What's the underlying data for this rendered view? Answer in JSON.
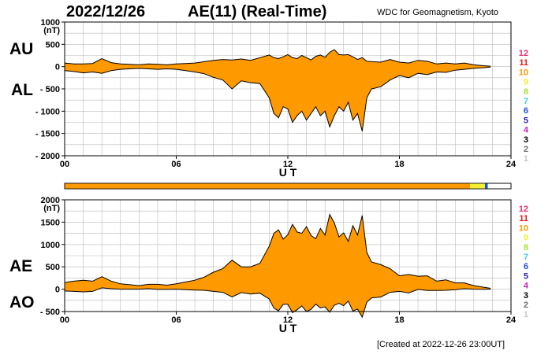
{
  "header": {
    "date": "2022/12/26",
    "title": "AE(11) (Real-Time)",
    "source": "WDC for Geomagnetism, Kyoto"
  },
  "footer": {
    "created": "[Created at 2022-12-26 23:00UT]"
  },
  "side_labels": {
    "au": "AU",
    "al": "AL",
    "ae": "AE",
    "ao": "AO"
  },
  "legend": {
    "items": [
      {
        "label": "12",
        "color": "#e8306e"
      },
      {
        "label": "11",
        "color": "#e61e1e"
      },
      {
        "label": "10",
        "color": "#ff9900"
      },
      {
        "label": "9",
        "color": "#f2ee32"
      },
      {
        "label": "8",
        "color": "#a6e22e"
      },
      {
        "label": "7",
        "color": "#3ad0e8"
      },
      {
        "label": "6",
        "color": "#2050e0"
      },
      {
        "label": "5",
        "color": "#3020b0"
      },
      {
        "label": "4",
        "color": "#c020c0"
      },
      {
        "label": "3",
        "color": "#000000"
      },
      {
        "label": "2",
        "color": "#707070"
      },
      {
        "label": "1",
        "color": "#c8c8c8"
      }
    ]
  },
  "colors": {
    "fill": "#ff9900",
    "line": "#000000",
    "grid": "#b8b8b8"
  },
  "chart_data": [
    {
      "type": "area",
      "name_labels": [
        "AU",
        "AL"
      ],
      "unit": "(nT)",
      "xlabel": "U T",
      "xlim": [
        0,
        24
      ],
      "xticks": [
        0,
        6,
        12,
        18,
        24
      ],
      "xtick_labels": [
        "00",
        "06",
        "12",
        "18",
        "24"
      ],
      "ylim": [
        -2000,
        1000
      ],
      "yticks": [
        1000,
        500,
        0,
        -500,
        -1000,
        -1500,
        -2000
      ],
      "ytick_labels": [
        "1000",
        "500",
        "0",
        "- 500",
        "- 1000",
        "- 1500",
        "- 2000"
      ],
      "grid": true,
      "x": [
        0,
        0.5,
        1,
        1.5,
        2,
        2.5,
        3,
        3.5,
        4,
        4.5,
        5,
        5.5,
        6,
        6.5,
        7,
        7.5,
        8,
        8.5,
        9,
        9.5,
        10,
        10.5,
        11,
        11.25,
        11.5,
        11.75,
        12,
        12.25,
        12.5,
        12.75,
        13,
        13.25,
        13.5,
        13.75,
        14,
        14.25,
        14.5,
        14.75,
        15,
        15.25,
        15.5,
        15.75,
        16,
        16.25,
        16.5,
        17,
        17.5,
        18,
        18.5,
        19,
        19.5,
        20,
        20.5,
        21,
        21.5,
        22,
        22.5,
        22.9
      ],
      "upper": [
        80,
        60,
        60,
        70,
        180,
        90,
        60,
        50,
        40,
        60,
        50,
        40,
        60,
        70,
        80,
        110,
        140,
        160,
        150,
        170,
        140,
        200,
        260,
        200,
        180,
        220,
        270,
        200,
        180,
        250,
        200,
        150,
        230,
        260,
        210,
        320,
        380,
        270,
        260,
        270,
        220,
        160,
        200,
        120,
        110,
        100,
        160,
        100,
        80,
        140,
        120,
        60,
        80,
        60,
        80,
        40,
        20,
        10
      ],
      "lower": [
        -90,
        -110,
        -140,
        -120,
        -150,
        -90,
        -60,
        -50,
        -40,
        -50,
        -60,
        -50,
        -60,
        -90,
        -120,
        -160,
        -240,
        -300,
        -500,
        -320,
        -360,
        -380,
        -700,
        -1050,
        -1150,
        -900,
        -950,
        -1250,
        -1100,
        -1000,
        -1200,
        -1050,
        -900,
        -1100,
        -1000,
        -1350,
        -1100,
        -900,
        -1000,
        -800,
        -1200,
        -1050,
        -1450,
        -700,
        -500,
        -450,
        -300,
        -200,
        -250,
        -150,
        -180,
        -120,
        -130,
        -80,
        -60,
        -40,
        -25,
        -10
      ]
    },
    {
      "type": "area",
      "name_labels": [
        "AE",
        "AO"
      ],
      "unit": "(nT)",
      "xlabel": "U T",
      "xlim": [
        0,
        24
      ],
      "xticks": [
        0,
        6,
        12,
        18,
        24
      ],
      "xtick_labels": [
        "00",
        "06",
        "12",
        "18",
        "24"
      ],
      "ylim": [
        -500,
        2000
      ],
      "yticks": [
        2000,
        1500,
        1000,
        500,
        0,
        -500
      ],
      "ytick_labels": [
        "2000",
        "1500",
        "1000",
        "500",
        "0",
        "- 500"
      ],
      "grid": true,
      "x": [
        0,
        0.5,
        1,
        1.5,
        2,
        2.5,
        3,
        3.5,
        4,
        4.5,
        5,
        5.5,
        6,
        6.5,
        7,
        7.5,
        8,
        8.5,
        9,
        9.5,
        10,
        10.5,
        11,
        11.25,
        11.5,
        11.75,
        12,
        12.25,
        12.5,
        12.75,
        13,
        13.25,
        13.5,
        13.75,
        14,
        14.25,
        14.5,
        14.75,
        15,
        15.25,
        15.5,
        15.75,
        16,
        16.25,
        16.5,
        17,
        17.5,
        18,
        18.5,
        19,
        19.5,
        20,
        20.5,
        21,
        21.5,
        22,
        22.5,
        22.9
      ],
      "upper": [
        150,
        180,
        200,
        180,
        280,
        180,
        120,
        100,
        80,
        110,
        110,
        90,
        120,
        160,
        200,
        270,
        380,
        460,
        650,
        500,
        500,
        580,
        960,
        1250,
        1330,
        1120,
        1220,
        1450,
        1280,
        1250,
        1400,
        1200,
        1130,
        1360,
        1210,
        1670,
        1480,
        1170,
        1260,
        1070,
        1420,
        1210,
        1650,
        820,
        610,
        550,
        460,
        300,
        330,
        290,
        300,
        180,
        210,
        140,
        140,
        80,
        45,
        20
      ],
      "lower": [
        -40,
        -50,
        -60,
        -50,
        30,
        10,
        0,
        0,
        0,
        10,
        -5,
        -5,
        0,
        -10,
        -20,
        -25,
        -50,
        -70,
        -175,
        -75,
        -110,
        -90,
        -220,
        -425,
        -485,
        -340,
        -340,
        -525,
        -460,
        -375,
        -500,
        -450,
        -335,
        -420,
        -395,
        -515,
        -360,
        -315,
        -370,
        -265,
        -490,
        -445,
        -625,
        -290,
        -195,
        -175,
        -70,
        -50,
        -85,
        -5,
        -30,
        -30,
        -25,
        -10,
        10,
        0,
        -3,
        0
      ]
    }
  ]
}
